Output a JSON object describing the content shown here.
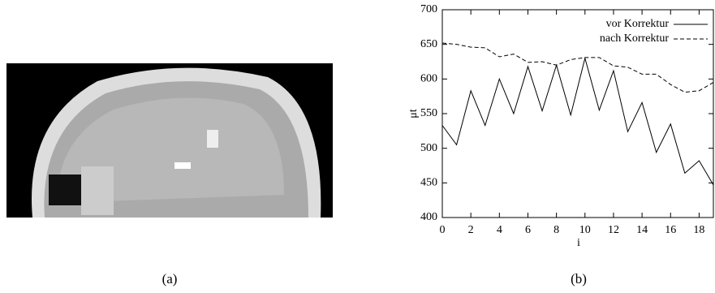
{
  "panel_a": {
    "caption": "(a)"
  },
  "chart_data": {
    "type": "line",
    "caption": "(b)",
    "xlabel": "i",
    "ylabel": "μt",
    "x": [
      0,
      1,
      2,
      3,
      4,
      5,
      6,
      7,
      8,
      9,
      10,
      11,
      12,
      13,
      14,
      15,
      16,
      17,
      18,
      19
    ],
    "series": [
      {
        "name": "vor Korrektur",
        "color": "#000000",
        "dash": "solid",
        "values": [
          533,
          505,
          583,
          533,
          600,
          550,
          618,
          554,
          620,
          548,
          630,
          555,
          612,
          524,
          566,
          494,
          535,
          464,
          482,
          447
        ]
      },
      {
        "name": "nach Korrektur",
        "color": "#000000",
        "dash": "dashed",
        "values": [
          652,
          650,
          646,
          645,
          632,
          636,
          624,
          625,
          620,
          628,
          631,
          631,
          619,
          617,
          607,
          607,
          592,
          581,
          583,
          595
        ]
      }
    ],
    "xlim": [
      0,
      19
    ],
    "xticks": [
      0,
      2,
      4,
      6,
      8,
      10,
      12,
      14,
      16,
      18
    ],
    "ylim": [
      400,
      700
    ],
    "yticks": [
      400,
      450,
      500,
      550,
      600,
      650,
      700
    ],
    "legend": "top-right"
  }
}
